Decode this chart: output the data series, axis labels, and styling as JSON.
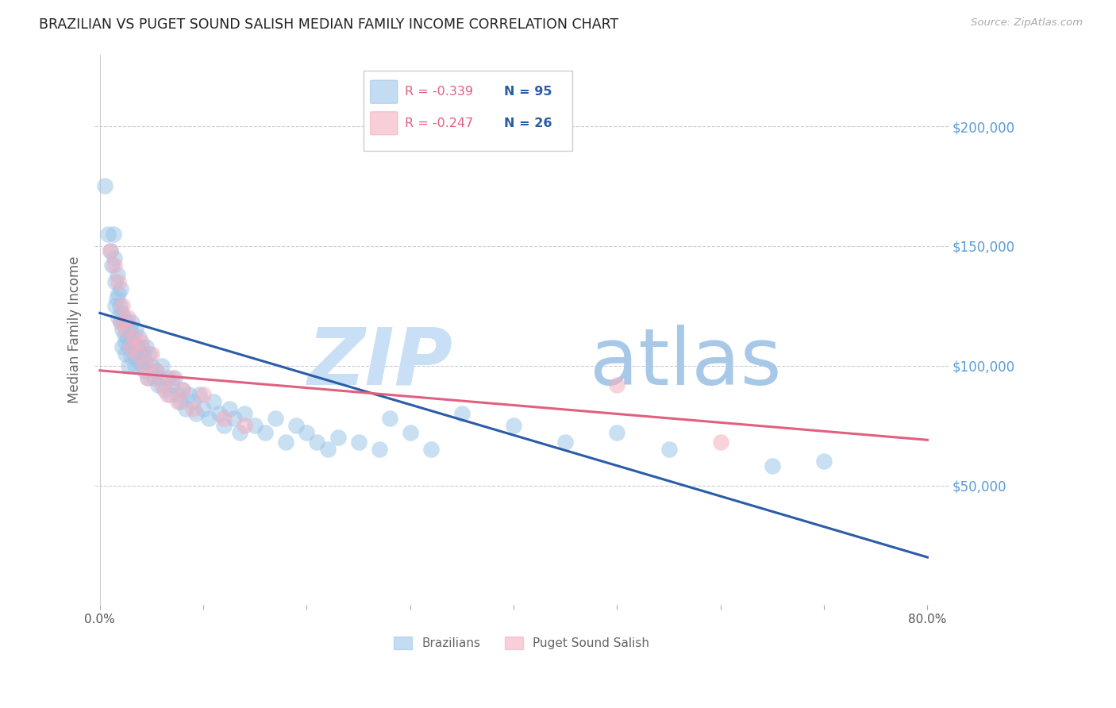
{
  "title": "BRAZILIAN VS PUGET SOUND SALISH MEDIAN FAMILY INCOME CORRELATION CHART",
  "source": "Source: ZipAtlas.com",
  "ylabel": "Median Family Income",
  "ylim": [
    0,
    230000
  ],
  "xlim": [
    -0.005,
    0.82
  ],
  "ytick_positions": [
    50000,
    100000,
    150000,
    200000
  ],
  "ytick_labels": [
    "$50,000",
    "$100,000",
    "$150,000",
    "$200,000"
  ],
  "xtick_positions": [
    0.0,
    0.1,
    0.2,
    0.3,
    0.4,
    0.5,
    0.6,
    0.7,
    0.8
  ],
  "xtick_labels": [
    "0.0%",
    "",
    "",
    "",
    "",
    "",
    "",
    "",
    "80.0%"
  ],
  "blue_color": "#9ec5e8",
  "blue_line_color": "#2b5ca8",
  "pink_color": "#f4afc0",
  "pink_line_color": "#e06080",
  "legend_r1": "R = -0.339",
  "legend_n1": "N = 95",
  "legend_r2": "R = -0.247",
  "legend_n2": "N = 26",
  "legend_label1": "Brazilians",
  "legend_label2": "Puget Sound Salish",
  "watermark_zip": "ZIP",
  "watermark_atlas": "atlas",
  "watermark_color_zip": "#c8dff5",
  "watermark_color_atlas": "#a8c8e8",
  "blue_line_x0": 0.0,
  "blue_line_y0": 122000,
  "blue_line_x1": 0.8,
  "blue_line_y1": 20000,
  "pink_line_x0": 0.0,
  "pink_line_y0": 98000,
  "pink_line_x1": 0.8,
  "pink_line_y1": 69000,
  "background_color": "#ffffff",
  "grid_color": "#b0b8c8",
  "title_color": "#222222",
  "axis_label_color": "#666666",
  "ytick_color": "#5b9bd5",
  "xtick_color": "#555555",
  "blue_scatter_x": [
    0.005,
    0.008,
    0.01,
    0.012,
    0.013,
    0.014,
    0.015,
    0.015,
    0.016,
    0.017,
    0.018,
    0.018,
    0.019,
    0.02,
    0.02,
    0.021,
    0.022,
    0.022,
    0.023,
    0.024,
    0.025,
    0.025,
    0.026,
    0.027,
    0.028,
    0.028,
    0.029,
    0.03,
    0.03,
    0.031,
    0.032,
    0.033,
    0.034,
    0.035,
    0.036,
    0.037,
    0.038,
    0.039,
    0.04,
    0.041,
    0.042,
    0.043,
    0.044,
    0.045,
    0.046,
    0.048,
    0.05,
    0.052,
    0.054,
    0.056,
    0.058,
    0.06,
    0.062,
    0.065,
    0.068,
    0.07,
    0.072,
    0.075,
    0.078,
    0.08,
    0.083,
    0.086,
    0.09,
    0.093,
    0.096,
    0.1,
    0.105,
    0.11,
    0.115,
    0.12,
    0.125,
    0.13,
    0.135,
    0.14,
    0.15,
    0.16,
    0.17,
    0.18,
    0.19,
    0.2,
    0.21,
    0.22,
    0.23,
    0.25,
    0.27,
    0.28,
    0.3,
    0.32,
    0.35,
    0.4,
    0.45,
    0.5,
    0.55,
    0.65,
    0.7
  ],
  "blue_scatter_y": [
    175000,
    155000,
    148000,
    142000,
    155000,
    145000,
    135000,
    125000,
    128000,
    138000,
    130000,
    120000,
    125000,
    118000,
    132000,
    122000,
    115000,
    108000,
    120000,
    113000,
    110000,
    105000,
    118000,
    112000,
    108000,
    100000,
    115000,
    112000,
    104000,
    118000,
    110000,
    105000,
    100000,
    115000,
    108000,
    102000,
    112000,
    105000,
    108000,
    100000,
    105000,
    98000,
    102000,
    108000,
    95000,
    105000,
    100000,
    95000,
    98000,
    92000,
    95000,
    100000,
    90000,
    95000,
    88000,
    92000,
    95000,
    88000,
    85000,
    90000,
    82000,
    88000,
    85000,
    80000,
    88000,
    82000,
    78000,
    85000,
    80000,
    75000,
    82000,
    78000,
    72000,
    80000,
    75000,
    72000,
    78000,
    68000,
    75000,
    72000,
    68000,
    65000,
    70000,
    68000,
    65000,
    78000,
    72000,
    65000,
    80000,
    75000,
    68000,
    72000,
    65000,
    58000,
    60000
  ],
  "pink_scatter_x": [
    0.01,
    0.014,
    0.018,
    0.02,
    0.022,
    0.025,
    0.027,
    0.03,
    0.033,
    0.036,
    0.04,
    0.043,
    0.046,
    0.05,
    0.055,
    0.06,
    0.065,
    0.07,
    0.075,
    0.08,
    0.09,
    0.1,
    0.12,
    0.14,
    0.5,
    0.6
  ],
  "pink_scatter_y": [
    148000,
    142000,
    135000,
    118000,
    125000,
    115000,
    120000,
    108000,
    112000,
    105000,
    110000,
    100000,
    95000,
    105000,
    98000,
    92000,
    88000,
    95000,
    85000,
    90000,
    82000,
    88000,
    78000,
    75000,
    92000,
    68000
  ]
}
